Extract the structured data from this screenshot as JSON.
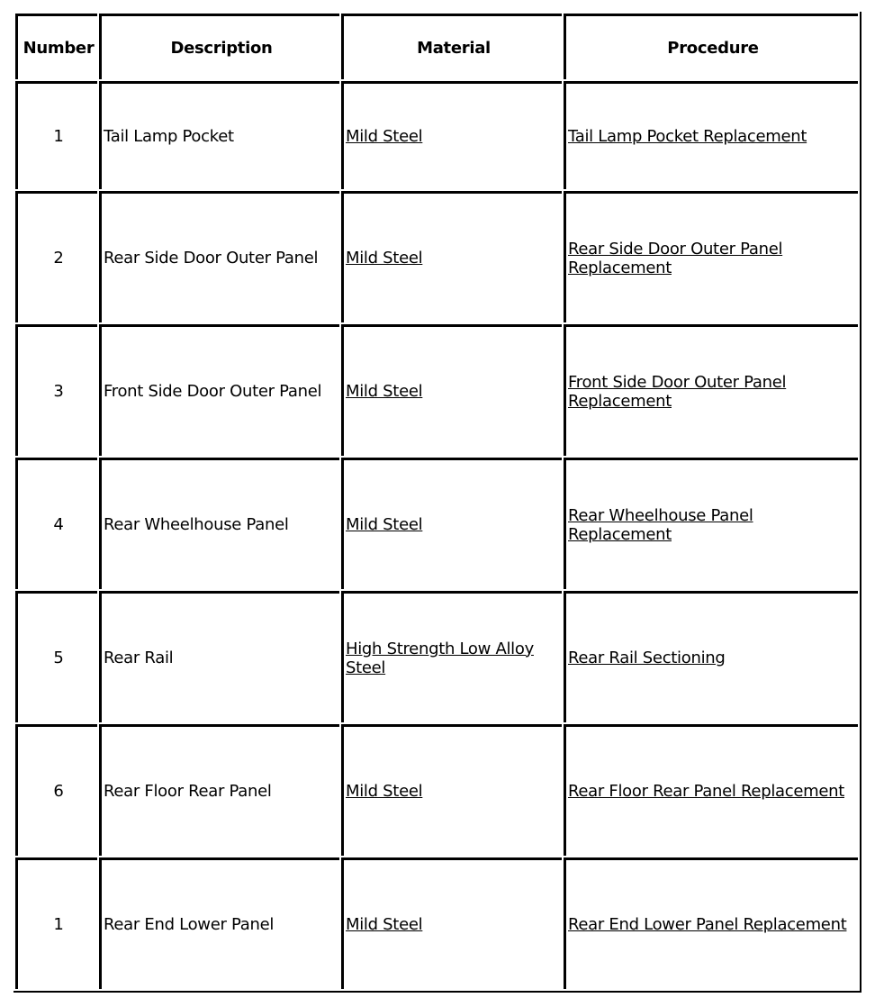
{
  "table": {
    "headers": [
      "Number",
      "Description",
      "Material",
      "Procedure"
    ],
    "rows": [
      {
        "number": "1",
        "description": "Tail Lamp Pocket",
        "material": "Mild Steel",
        "procedure": "Tail Lamp Pocket Replacement"
      },
      {
        "number": "2",
        "description": "Rear Side Door Outer Panel",
        "material": "Mild Steel",
        "procedure": "Rear Side Door Outer Panel Replacement"
      },
      {
        "number": "3",
        "description": "Front Side Door Outer Panel",
        "material": "Mild Steel",
        "procedure": "Front Side Door Outer Panel Replacement"
      },
      {
        "number": "4",
        "description": "Rear Wheelhouse Panel",
        "material": "Mild Steel",
        "procedure": "Rear Wheelhouse Panel Replacement"
      },
      {
        "number": "5",
        "description": "Rear Rail",
        "material": "High Strength Low Alloy Steel",
        "procedure": "Rear Rail Sectioning"
      },
      {
        "number": "6",
        "description": "Rear Floor Rear Panel",
        "material": "Mild Steel",
        "procedure": "Rear Floor Rear Panel Replacement"
      },
      {
        "number": "1",
        "description": "Rear End Lower Panel",
        "material": "Mild Steel",
        "procedure": "Rear End Lower Panel Replacement"
      }
    ]
  }
}
